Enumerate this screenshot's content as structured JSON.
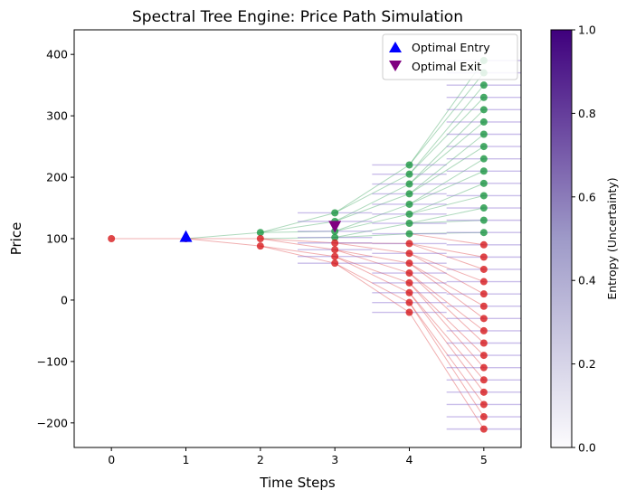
{
  "chart_data": {
    "type": "scatter",
    "title": "Spectral Tree Engine: Price Path Simulation",
    "xlabel": "Time Steps",
    "ylabel": "Price",
    "xlim": [
      -0.5,
      5.5
    ],
    "ylim": [
      -240,
      440
    ],
    "xticks": [
      0,
      1,
      2,
      3,
      4,
      5
    ],
    "yticks": [
      -200,
      -100,
      0,
      100,
      200,
      300,
      400
    ],
    "ytick_labels": [
      "−200",
      "−100",
      "0",
      "100",
      "200",
      "300",
      "400"
    ],
    "grid": false,
    "legend_position": "top-right",
    "colors": {
      "up": "#1a9641",
      "down": "#d7191c",
      "entry": "#0000ff",
      "exit": "#800080",
      "entropy_bar": "#8a6fd0"
    },
    "nodes": [
      {
        "step": 0,
        "prices": [
          100
        ]
      },
      {
        "step": 1,
        "prices": [
          100
        ]
      },
      {
        "step": 2,
        "prices": [
          110,
          100,
          88
        ]
      },
      {
        "step": 3,
        "prices": [
          142,
          128,
          112,
          102,
          93,
          82,
          71,
          60
        ]
      },
      {
        "step": 4,
        "prices": [
          220,
          205,
          189,
          173,
          156,
          140,
          125,
          108,
          92,
          76,
          60,
          44,
          28,
          12,
          -4,
          -20
        ]
      },
      {
        "step": 5,
        "prices": [
          390,
          370,
          350,
          330,
          310,
          290,
          270,
          250,
          230,
          210,
          190,
          170,
          150,
          130,
          110,
          90,
          70,
          50,
          30,
          10,
          -10,
          -30,
          -50,
          -70,
          -90,
          -110,
          -130,
          -150,
          -170,
          -190,
          -210
        ]
      }
    ],
    "markers": [
      {
        "name": "Optimal Entry",
        "x": 1,
        "y": 102,
        "shape": "triangle-up"
      },
      {
        "name": "Optimal Exit",
        "x": 3,
        "y": 120,
        "shape": "triangle-down"
      }
    ],
    "colorbar": {
      "label": "Entropy (Uncertainty)",
      "range": [
        0,
        1
      ],
      "ticks": [
        0.0,
        0.2,
        0.4,
        0.6,
        0.8,
        1.0
      ],
      "tick_labels": [
        "0.0",
        "0.2",
        "0.4",
        "0.6",
        "0.8",
        "1.0"
      ],
      "cmap_low": "#fcfbfd",
      "cmap_high": "#3f007d"
    }
  }
}
